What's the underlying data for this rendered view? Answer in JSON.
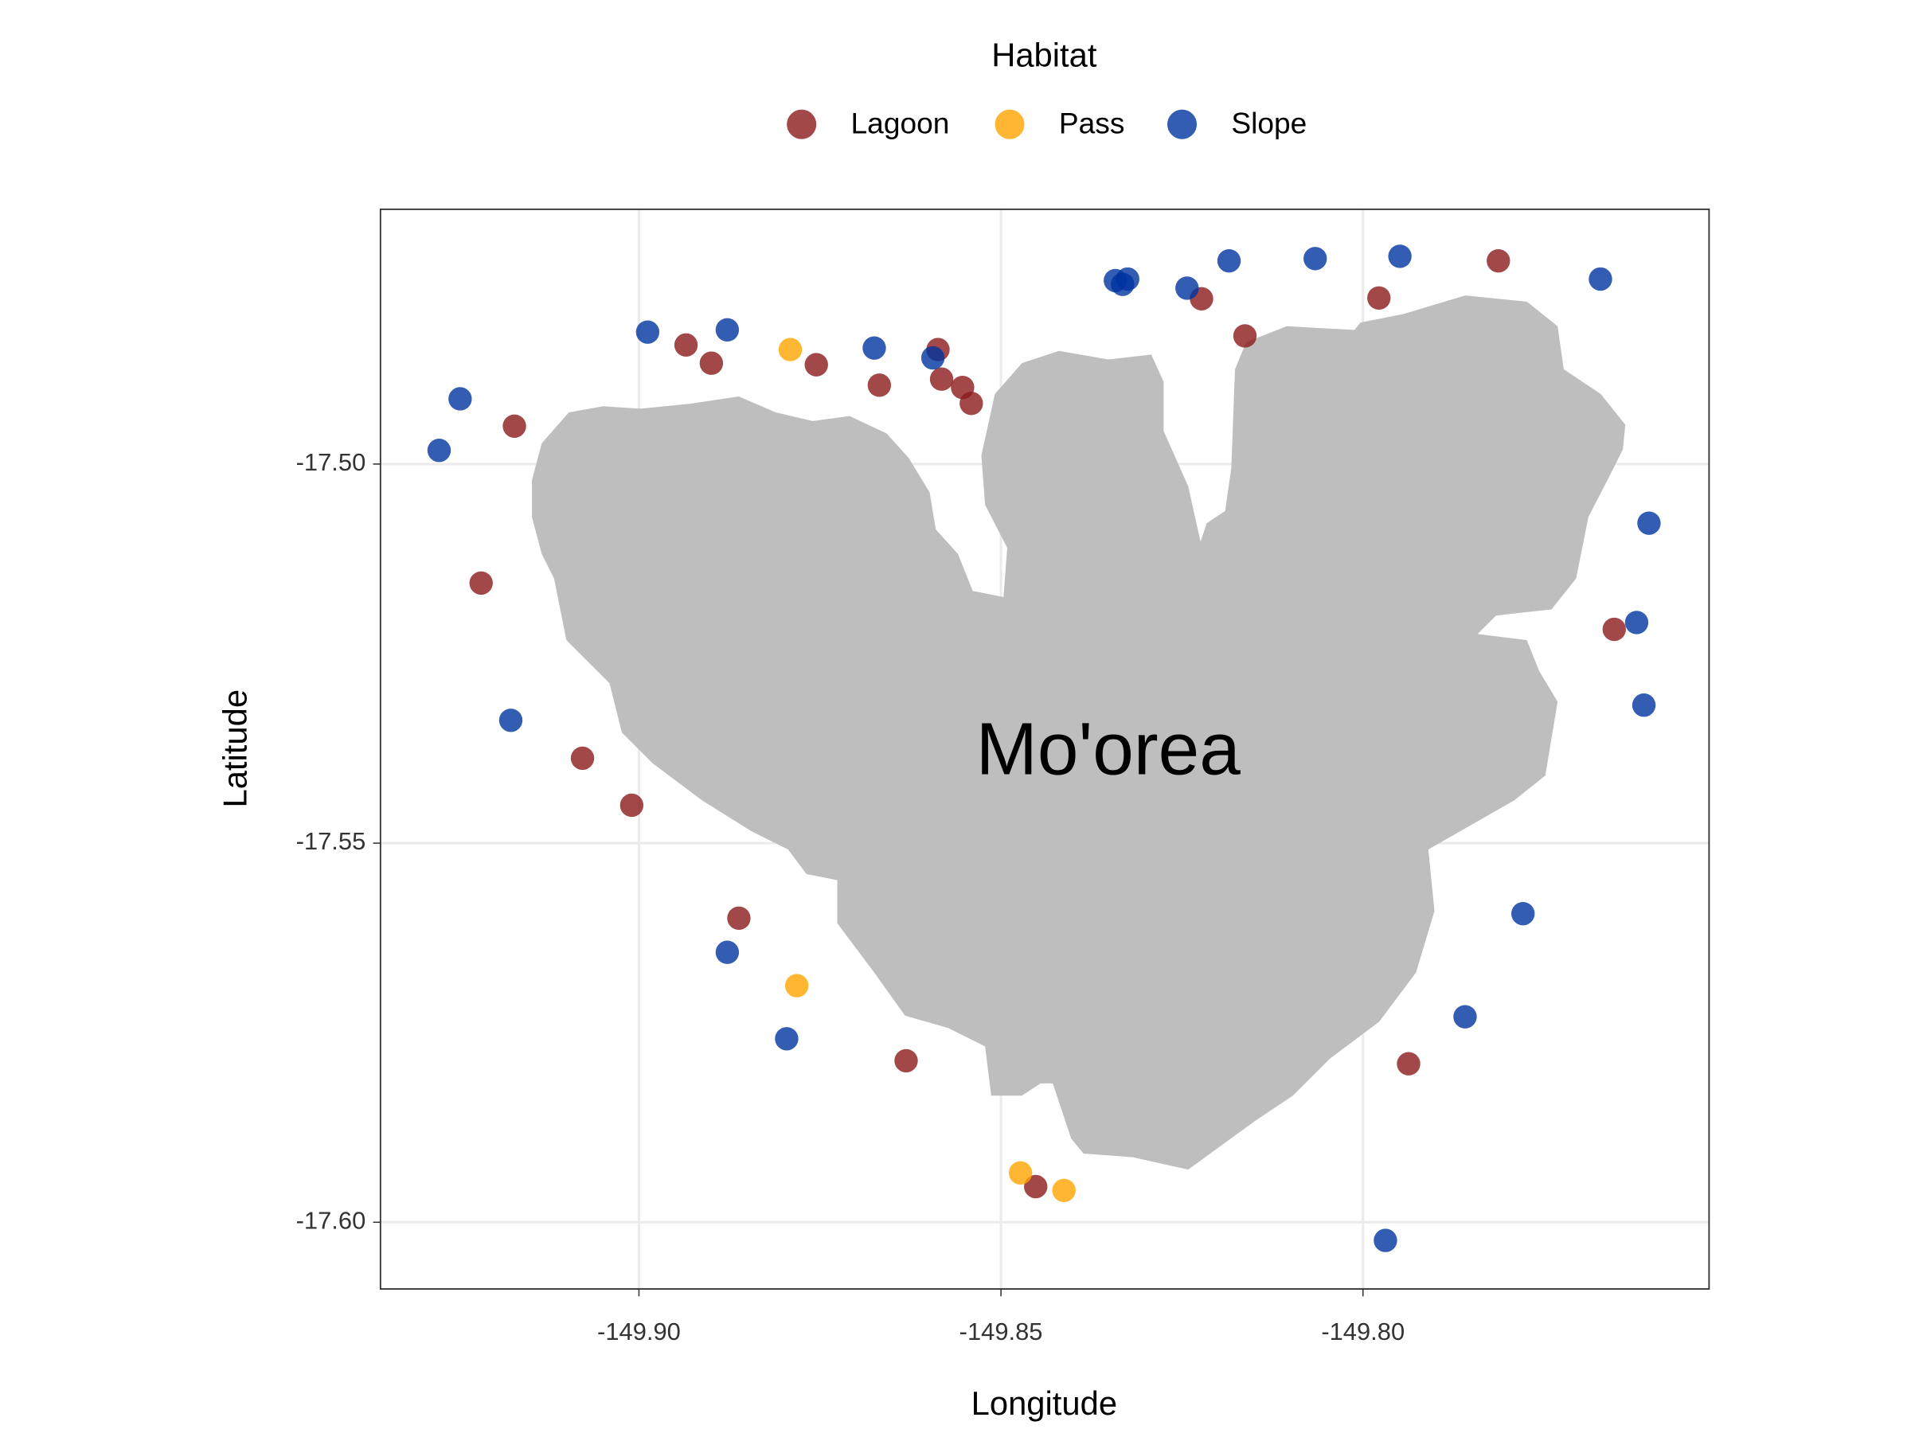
{
  "chart_data": {
    "type": "scatter",
    "x_label": "Longitude",
    "y_label": "Latitude",
    "legend_title": "Habitat",
    "legend_position": "top",
    "annotation": "Mo'orea",
    "grid": true,
    "xlim": [
      -149.9357,
      -149.7522
    ],
    "ylim": [
      -17.6088,
      -17.4664
    ],
    "xticks": [
      {
        "value": -149.9,
        "label": "-149.90"
      },
      {
        "value": -149.85,
        "label": "-149.85"
      },
      {
        "value": -149.8,
        "label": "-149.80"
      }
    ],
    "yticks": [
      {
        "value": -17.6,
        "label": "-17.60"
      },
      {
        "value": -17.55,
        "label": "-17.55"
      },
      {
        "value": -17.5,
        "label": "-17.50"
      }
    ],
    "series": [
      {
        "name": "Lagoon",
        "color": "#8B1A1A",
        "x": [
          -149.9172,
          -149.9218,
          -149.9078,
          -149.901,
          -149.8935,
          -149.89,
          -149.8755,
          -149.8668,
          -149.8587,
          -149.8582,
          -149.8553,
          -149.8541,
          -149.8862,
          -149.8631,
          -149.8452,
          -149.8223,
          -149.8163,
          -149.7978,
          -149.7813,
          -149.7653,
          -149.7937
        ],
        "values": [
          -17.495,
          -17.5157,
          -17.5388,
          -17.545,
          -17.4843,
          -17.4867,
          -17.4869,
          -17.4896,
          -17.4849,
          -17.4888,
          -17.4899,
          -17.492,
          -17.5599,
          -17.5787,
          -17.5953,
          -17.4782,
          -17.4831,
          -17.4781,
          -17.4732,
          -17.5218,
          -17.5791
        ]
      },
      {
        "name": "Pass",
        "color": "#FFA500",
        "x": [
          -149.8791,
          -149.8782,
          -149.8473,
          -149.8413
        ],
        "values": [
          -17.4849,
          -17.5688,
          -17.5935,
          -17.5958
        ]
      },
      {
        "name": "Slope",
        "color": "#0033A0",
        "x": [
          -149.9276,
          -149.9247,
          -149.9177,
          -149.8988,
          -149.8878,
          -149.8675,
          -149.8594,
          -149.8878,
          -149.8796,
          -149.8342,
          -149.8325,
          -149.8332,
          -149.8243,
          -149.8185,
          -149.8066,
          -149.7949,
          -149.7672,
          -149.7605,
          -149.7622,
          -149.7612,
          -149.7779,
          -149.7859,
          -149.7969
        ],
        "values": [
          -17.4982,
          -17.4914,
          -17.5338,
          -17.4826,
          -17.4823,
          -17.4847,
          -17.486,
          -17.5644,
          -17.5758,
          -17.4758,
          -17.4756,
          -17.4763,
          -17.4768,
          -17.4732,
          -17.4729,
          -17.4726,
          -17.4756,
          -17.5078,
          -17.5209,
          -17.5318,
          -17.5593,
          -17.5729,
          -17.6024
        ]
      }
    ]
  }
}
